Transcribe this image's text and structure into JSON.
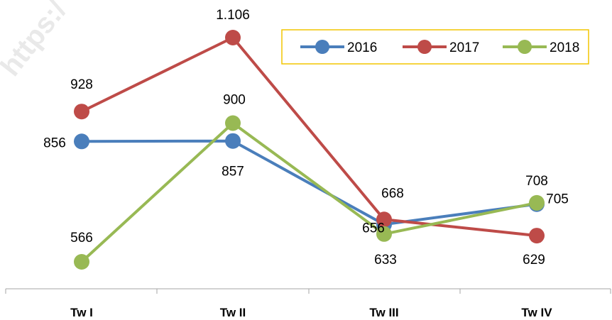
{
  "watermark": "https:/",
  "chart_data": {
    "type": "line",
    "title": "",
    "xlabel": "",
    "ylabel": "",
    "categories": [
      "Tw I",
      "Tw II",
      "Tw III",
      "Tw IV"
    ],
    "ylim": [
      500,
      1150
    ],
    "grid": false,
    "legend": "top-right",
    "series": [
      {
        "name": "2016",
        "color": "#4a7ebb",
        "values": [
          856,
          857,
          656,
          705
        ],
        "labels": [
          "856",
          "857",
          "656",
          "705"
        ]
      },
      {
        "name": "2017",
        "color": "#be4b48",
        "values": [
          928,
          1106,
          668,
          629
        ],
        "labels": [
          "928",
          "1.106",
          "668",
          "629"
        ]
      },
      {
        "name": "2018",
        "color": "#98b954",
        "values": [
          566,
          900,
          633,
          708
        ],
        "labels": [
          "566",
          "900",
          "633",
          "708"
        ]
      }
    ],
    "legend_border_color": "#f2c600"
  }
}
